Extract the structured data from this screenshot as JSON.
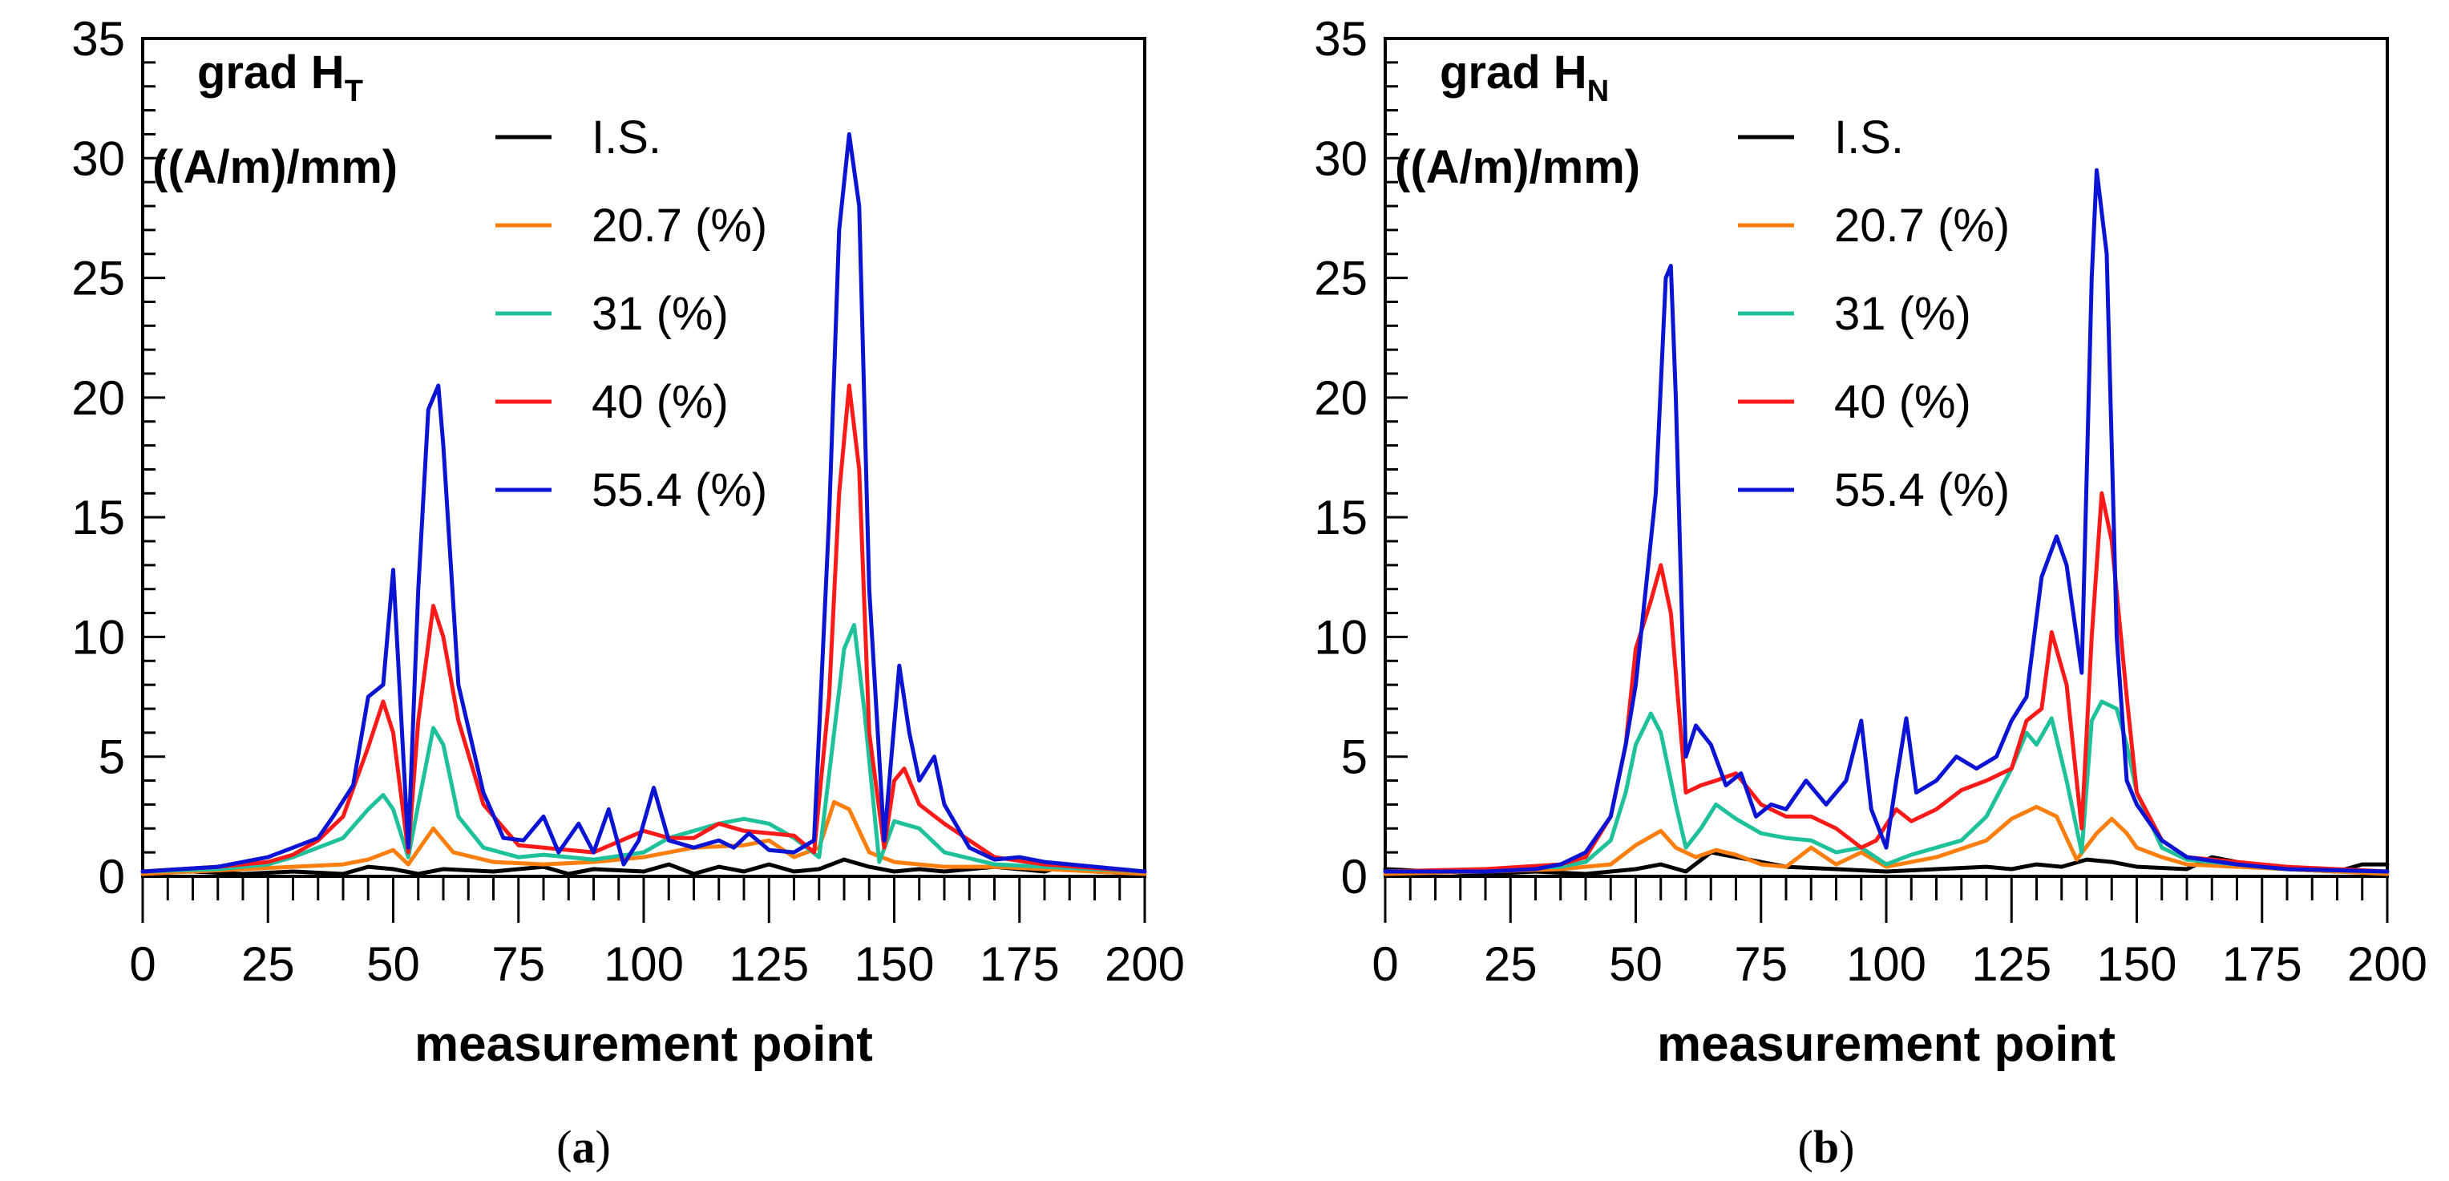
{
  "colors": {
    "I.S.": "#000000",
    "20.7 (%)": "#ff7f0e",
    "31 (%)": "#1fc19a",
    "40 (%)": "#ff1a1a",
    "55.4 (%)": "#0a14d2"
  },
  "chart_data": [
    {
      "type": "line",
      "caption_letter": "a",
      "title_main": "grad H",
      "title_sub": "T",
      "unit_label": "((A/m)/mm)",
      "xlabel": "measurement point",
      "ylabel": "",
      "xlim": [
        0,
        200
      ],
      "ylim": [
        0,
        35
      ],
      "xticks": [
        0,
        25,
        50,
        75,
        100,
        125,
        150,
        175,
        200
      ],
      "yticks": [
        0,
        5,
        10,
        15,
        20,
        25,
        30,
        35
      ],
      "legend_position": "top-center",
      "series": [
        {
          "name": "I.S.",
          "x": [
            0,
            10,
            20,
            30,
            40,
            45,
            50,
            55,
            60,
            70,
            80,
            85,
            90,
            100,
            105,
            110,
            115,
            120,
            125,
            130,
            135,
            140,
            145,
            150,
            155,
            160,
            170,
            180,
            185,
            190,
            200
          ],
          "y": [
            0.2,
            0.2,
            0.1,
            0.2,
            0.1,
            0.4,
            0.3,
            0.1,
            0.3,
            0.2,
            0.4,
            0.1,
            0.3,
            0.2,
            0.5,
            0.1,
            0.4,
            0.2,
            0.5,
            0.2,
            0.3,
            0.7,
            0.4,
            0.2,
            0.3,
            0.2,
            0.4,
            0.2,
            0.5,
            0.2,
            0.1
          ]
        },
        {
          "name": "20.7 (%)",
          "x": [
            0,
            10,
            20,
            30,
            40,
            45,
            50,
            53,
            58,
            62,
            70,
            80,
            90,
            100,
            110,
            120,
            125,
            130,
            135,
            138,
            141,
            145,
            150,
            155,
            160,
            170,
            180,
            190,
            200
          ],
          "y": [
            0.1,
            0.2,
            0.3,
            0.4,
            0.5,
            0.7,
            1.1,
            0.5,
            2.0,
            1.0,
            0.6,
            0.5,
            0.6,
            0.8,
            1.2,
            1.3,
            1.5,
            0.8,
            1.2,
            3.1,
            2.8,
            1.0,
            0.6,
            0.5,
            0.4,
            0.4,
            0.3,
            0.2,
            0.1
          ]
        },
        {
          "name": "31 (%)",
          "x": [
            0,
            15,
            25,
            30,
            35,
            40,
            45,
            48,
            50,
            53,
            55,
            58,
            60,
            63,
            68,
            75,
            80,
            90,
            100,
            105,
            110,
            115,
            120,
            125,
            130,
            135,
            138,
            140,
            142,
            144,
            147,
            150,
            155,
            160,
            170,
            180,
            200
          ],
          "y": [
            0.2,
            0.3,
            0.5,
            0.8,
            1.2,
            1.6,
            2.8,
            3.4,
            2.8,
            0.8,
            3.0,
            6.2,
            5.5,
            2.5,
            1.2,
            0.8,
            0.9,
            0.7,
            1.0,
            1.6,
            1.9,
            2.2,
            2.4,
            2.2,
            1.6,
            0.8,
            6.0,
            9.5,
            10.5,
            7.0,
            0.6,
            2.3,
            2.0,
            1.0,
            0.5,
            0.4,
            0.2
          ]
        },
        {
          "name": "40 (%)",
          "x": [
            0,
            15,
            25,
            30,
            35,
            40,
            45,
            48,
            50,
            53,
            55,
            58,
            60,
            63,
            68,
            75,
            80,
            90,
            100,
            105,
            110,
            115,
            120,
            125,
            130,
            134,
            137,
            139,
            141,
            143,
            145,
            148,
            150,
            152,
            155,
            160,
            170,
            180,
            200
          ],
          "y": [
            0.2,
            0.4,
            0.6,
            0.9,
            1.5,
            2.5,
            5.4,
            7.3,
            6.0,
            1.0,
            6.5,
            11.3,
            10.0,
            6.5,
            3.0,
            1.3,
            1.2,
            1.0,
            1.9,
            1.6,
            1.6,
            2.2,
            1.9,
            1.8,
            1.7,
            1.0,
            7.5,
            16.0,
            20.5,
            17.0,
            6.0,
            1.2,
            4.0,
            4.5,
            3.0,
            2.2,
            0.8,
            0.5,
            0.2
          ]
        },
        {
          "name": "55.4 (%)",
          "x": [
            0,
            15,
            25,
            30,
            35,
            38,
            42,
            45,
            48,
            50,
            53,
            55,
            57,
            59,
            60,
            63,
            68,
            72,
            76,
            80,
            83,
            87,
            90,
            93,
            96,
            99,
            102,
            105,
            110,
            115,
            118,
            121,
            125,
            130,
            134,
            137,
            139,
            141,
            143,
            145,
            148,
            151,
            153,
            155,
            158,
            160,
            165,
            170,
            175,
            180,
            200
          ],
          "y": [
            0.2,
            0.4,
            0.8,
            1.2,
            1.6,
            2.5,
            3.8,
            7.5,
            8.0,
            12.8,
            1.2,
            12.0,
            19.5,
            20.5,
            18.0,
            8.0,
            3.5,
            1.6,
            1.5,
            2.5,
            1.0,
            2.2,
            1.0,
            2.8,
            0.5,
            1.5,
            3.7,
            1.5,
            1.2,
            1.5,
            1.2,
            1.8,
            1.1,
            1.0,
            1.5,
            15.0,
            27.0,
            31.0,
            28.0,
            12.0,
            1.5,
            8.8,
            6.0,
            4.0,
            5.0,
            3.0,
            1.2,
            0.7,
            0.8,
            0.6,
            0.2
          ]
        }
      ],
      "legend": [
        "I.S.",
        "20.7 (%)",
        "31 (%)",
        "40 (%)",
        "55.4 (%)"
      ]
    },
    {
      "type": "line",
      "caption_letter": "b",
      "title_main": "grad H",
      "title_sub": "N",
      "unit_label": "((A/m)/mm)",
      "xlabel": "measurement point",
      "ylabel": "",
      "xlim": [
        0,
        200
      ],
      "ylim": [
        0,
        35
      ],
      "xticks": [
        0,
        25,
        50,
        75,
        100,
        125,
        150,
        175,
        200
      ],
      "yticks": [
        0,
        5,
        10,
        15,
        20,
        25,
        30,
        35
      ],
      "legend_position": "top-center",
      "series": [
        {
          "name": "I.S.",
          "x": [
            0,
            10,
            20,
            30,
            40,
            50,
            55,
            60,
            65,
            70,
            80,
            90,
            100,
            110,
            120,
            125,
            130,
            135,
            140,
            145,
            150,
            160,
            165,
            170,
            180,
            190,
            195,
            200
          ],
          "y": [
            0.3,
            0.2,
            0.1,
            0.2,
            0.1,
            0.3,
            0.5,
            0.2,
            1.0,
            0.8,
            0.4,
            0.3,
            0.2,
            0.3,
            0.4,
            0.3,
            0.5,
            0.4,
            0.7,
            0.6,
            0.4,
            0.3,
            0.8,
            0.6,
            0.3,
            0.2,
            0.5,
            0.5
          ]
        },
        {
          "name": "20.7 (%)",
          "x": [
            0,
            20,
            35,
            45,
            50,
            55,
            58,
            62,
            66,
            70,
            75,
            80,
            85,
            90,
            95,
            100,
            105,
            110,
            120,
            125,
            130,
            134,
            138,
            142,
            145,
            148,
            150,
            155,
            160,
            170,
            180,
            190,
            200
          ],
          "y": [
            0.1,
            0.2,
            0.3,
            0.5,
            1.3,
            1.9,
            1.2,
            0.8,
            1.1,
            0.9,
            0.5,
            0.4,
            1.2,
            0.5,
            1.0,
            0.4,
            0.6,
            0.8,
            1.5,
            2.4,
            2.9,
            2.5,
            0.7,
            1.8,
            2.4,
            1.8,
            1.2,
            0.8,
            0.5,
            0.4,
            0.3,
            0.2,
            0.1
          ]
        },
        {
          "name": "31 (%)",
          "x": [
            0,
            20,
            35,
            40,
            45,
            48,
            50,
            53,
            55,
            58,
            60,
            63,
            66,
            70,
            75,
            80,
            85,
            90,
            95,
            100,
            105,
            110,
            115,
            120,
            125,
            128,
            130,
            133,
            136,
            139,
            141,
            143,
            146,
            148,
            150,
            155,
            160,
            170,
            180,
            200
          ],
          "y": [
            0.2,
            0.3,
            0.4,
            0.6,
            1.5,
            3.5,
            5.5,
            6.8,
            6.0,
            3.0,
            1.2,
            2.0,
            3.0,
            2.4,
            1.8,
            1.6,
            1.5,
            1.0,
            1.2,
            0.5,
            0.9,
            1.2,
            1.5,
            2.5,
            4.5,
            6.0,
            5.5,
            6.6,
            4.0,
            1.0,
            6.5,
            7.3,
            7.0,
            5.5,
            3.5,
            1.2,
            0.7,
            0.5,
            0.3,
            0.2
          ]
        },
        {
          "name": "40 (%)",
          "x": [
            0,
            20,
            35,
            40,
            45,
            48,
            50,
            53,
            55,
            57,
            60,
            63,
            66,
            70,
            75,
            80,
            85,
            90,
            95,
            98,
            102,
            105,
            110,
            115,
            120,
            125,
            128,
            131,
            133,
            136,
            139,
            141,
            143,
            145,
            148,
            150,
            155,
            160,
            170,
            180,
            200
          ],
          "y": [
            0.2,
            0.3,
            0.5,
            0.8,
            2.5,
            5.5,
            9.5,
            11.5,
            13.0,
            11.0,
            3.5,
            3.8,
            4.0,
            4.3,
            3.0,
            2.5,
            2.5,
            2.0,
            1.2,
            1.5,
            2.8,
            2.3,
            2.8,
            3.6,
            4.0,
            4.5,
            6.5,
            7.0,
            10.2,
            8.0,
            2.0,
            10.0,
            16.0,
            14.0,
            7.5,
            3.5,
            1.5,
            0.8,
            0.6,
            0.4,
            0.2
          ]
        },
        {
          "name": "55.4 (%)",
          "x": [
            0,
            20,
            30,
            35,
            40,
            45,
            48,
            50,
            52,
            54,
            56,
            57,
            58,
            60,
            62,
            65,
            68,
            71,
            74,
            77,
            80,
            84,
            88,
            92,
            95,
            97,
            100,
            102,
            104,
            106,
            110,
            114,
            118,
            122,
            125,
            128,
            131,
            134,
            136,
            139,
            141,
            142,
            144,
            146,
            148,
            150,
            155,
            160,
            170,
            175,
            180,
            200
          ],
          "y": [
            0.2,
            0.2,
            0.3,
            0.5,
            1.0,
            2.5,
            5.5,
            8.0,
            12.0,
            16.0,
            25.0,
            25.5,
            20.0,
            5.0,
            6.3,
            5.5,
            3.8,
            4.3,
            2.5,
            3.0,
            2.8,
            4.0,
            3.0,
            4.0,
            6.5,
            2.8,
            1.2,
            4.0,
            6.6,
            3.5,
            4.0,
            5.0,
            4.5,
            5.0,
            6.5,
            7.5,
            12.5,
            14.2,
            13.0,
            8.5,
            25.0,
            29.5,
            26.0,
            10.0,
            4.0,
            3.0,
            1.5,
            0.8,
            0.5,
            0.4,
            0.3,
            0.2
          ]
        }
      ],
      "legend": [
        "I.S.",
        "20.7 (%)",
        "31 (%)",
        "40 (%)",
        "55.4 (%)"
      ]
    }
  ]
}
